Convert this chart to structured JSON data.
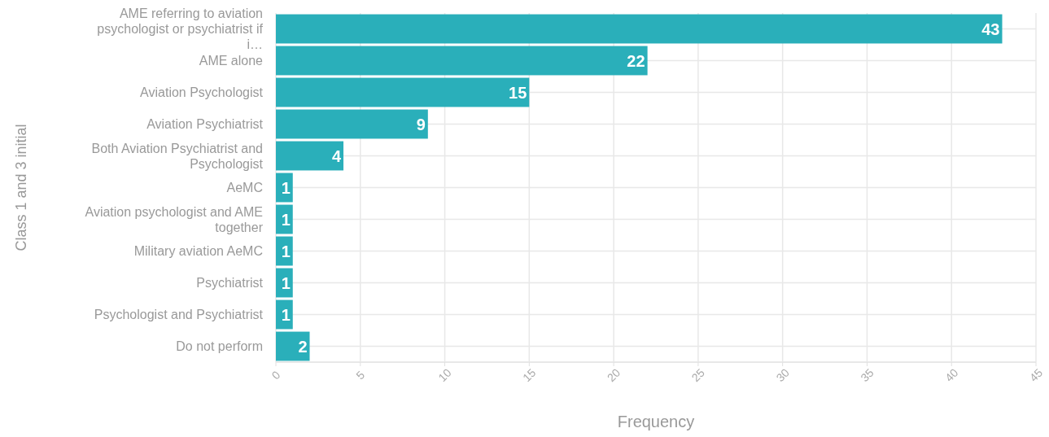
{
  "chart_data": {
    "type": "bar",
    "orientation": "horizontal",
    "xlabel": "Frequency",
    "ylabel": "Class 1 and 3 initial",
    "categories": [
      "AME referring to aviation psychologist or psychiatrist if i…",
      "AME alone",
      "Aviation Psychologist",
      "Aviation Psychiatrist",
      "Both Aviation Psychiatrist and Psychologist",
      "AeMC",
      "Aviation psychologist and AME together",
      "Military aviation AeMC",
      "Psychiatrist",
      "Psychologist and Psychiatrist",
      "Do not perform"
    ],
    "values": [
      43,
      22,
      15,
      9,
      4,
      1,
      1,
      1,
      1,
      1,
      2
    ],
    "color": "#2aafba",
    "xlim": [
      0,
      45
    ],
    "xticks": [
      0,
      5,
      10,
      15,
      20,
      25,
      30,
      35,
      40,
      45
    ],
    "grid": true,
    "data_labels": true
  }
}
